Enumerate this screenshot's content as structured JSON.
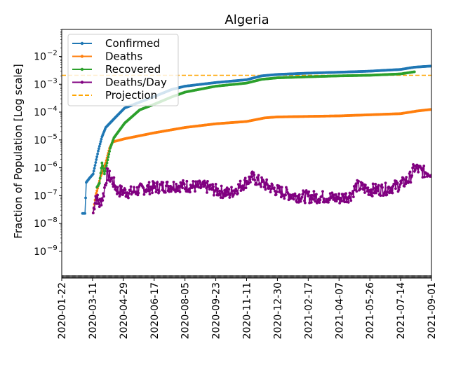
{
  "chart_data": {
    "type": "line",
    "title": "Algeria",
    "xlabel": "",
    "ylabel": "Fraction of Population [Log scale]",
    "yscale": "log",
    "ylim": [
      1.1e-10,
      0.093
    ],
    "xlim": [
      "2020-01-22",
      "2021-09-01"
    ],
    "x_ticks": [
      "2020-01-22",
      "2020-03-11",
      "2020-04-29",
      "2020-06-17",
      "2020-08-05",
      "2020-09-23",
      "2020-11-11",
      "2020-12-30",
      "2021-02-17",
      "2021-04-07",
      "2021-05-26",
      "2021-07-14",
      "2021-09-01"
    ],
    "y_ticks": [
      {
        "value": 0.01,
        "base": "10",
        "exp": "−2"
      },
      {
        "value": 0.001,
        "base": "10",
        "exp": "−3"
      },
      {
        "value": 0.0001,
        "base": "10",
        "exp": "−4"
      },
      {
        "value": 1e-05,
        "base": "10",
        "exp": "−5"
      },
      {
        "value": 1e-06,
        "base": "10",
        "exp": "−6"
      },
      {
        "value": 1e-07,
        "base": "10",
        "exp": "−7"
      },
      {
        "value": 1e-08,
        "base": "10",
        "exp": "−8"
      },
      {
        "value": 1e-09,
        "base": "10",
        "exp": "−9"
      }
    ],
    "legend_position": "top-left",
    "series": [
      {
        "name": "Confirmed",
        "color": "#1f77b4",
        "style": "line-dots",
        "points": [
          [
            "2020-02-24",
            2.3e-08
          ],
          [
            "2020-02-28",
            2.3e-08
          ],
          [
            "2020-03-01",
            3e-07
          ],
          [
            "2020-03-06",
            4.2e-07
          ],
          [
            "2020-03-12",
            6e-07
          ],
          [
            "2020-03-20",
            4e-06
          ],
          [
            "2020-03-26",
            1.3e-05
          ],
          [
            "2020-04-01",
            2.8e-05
          ],
          [
            "2020-04-15",
            6e-05
          ],
          [
            "2020-05-01",
            0.00014
          ],
          [
            "2020-06-17",
            0.00036
          ],
          [
            "2020-07-15",
            0.00065
          ],
          [
            "2020-08-05",
            0.00085
          ],
          [
            "2020-09-23",
            0.00115
          ],
          [
            "2020-11-11",
            0.00145
          ],
          [
            "2020-12-05",
            0.002
          ],
          [
            "2020-12-30",
            0.00225
          ],
          [
            "2021-02-17",
            0.0025
          ],
          [
            "2021-04-07",
            0.0027
          ],
          [
            "2021-05-26",
            0.00295
          ],
          [
            "2021-07-14",
            0.0034
          ],
          [
            "2021-08-05",
            0.0041
          ],
          [
            "2021-09-01",
            0.0045
          ]
        ]
      },
      {
        "name": "Deaths",
        "color": "#ff7f0e",
        "style": "line-dots",
        "points": [
          [
            "2020-03-12",
            2.4e-08
          ],
          [
            "2020-03-16",
            1e-07
          ],
          [
            "2020-03-24",
            5e-07
          ],
          [
            "2020-04-01",
            1.5e-06
          ],
          [
            "2020-04-07",
            5e-06
          ],
          [
            "2020-04-12",
            8.5e-06
          ],
          [
            "2020-05-01",
            1.1e-05
          ],
          [
            "2020-06-17",
            1.8e-05
          ],
          [
            "2020-08-05",
            2.8e-05
          ],
          [
            "2020-09-23",
            3.8e-05
          ],
          [
            "2020-11-11",
            4.6e-05
          ],
          [
            "2020-12-10",
            6.2e-05
          ],
          [
            "2020-12-30",
            6.7e-05
          ],
          [
            "2021-02-17",
            7e-05
          ],
          [
            "2021-04-07",
            7.3e-05
          ],
          [
            "2021-05-26",
            8e-05
          ],
          [
            "2021-07-14",
            8.8e-05
          ],
          [
            "2021-08-10",
            0.00011
          ],
          [
            "2021-09-01",
            0.000125
          ]
        ]
      },
      {
        "name": "Recovered",
        "color": "#2ca02c",
        "style": "line-dots",
        "points": [
          [
            "2020-03-18",
            2e-07
          ],
          [
            "2020-03-22",
            2.8e-07
          ],
          [
            "2020-03-26",
            1.5e-06
          ],
          [
            "2020-03-30",
            6e-07
          ],
          [
            "2020-04-03",
            1.5e-06
          ],
          [
            "2020-04-08",
            5e-06
          ],
          [
            "2020-04-14",
            1.2e-05
          ],
          [
            "2020-05-01",
            4e-05
          ],
          [
            "2020-05-25",
            0.00012
          ],
          [
            "2020-06-17",
            0.00019
          ],
          [
            "2020-07-15",
            0.00035
          ],
          [
            "2020-08-05",
            0.00052
          ],
          [
            "2020-09-23",
            0.00085
          ],
          [
            "2020-11-11",
            0.0011
          ],
          [
            "2020-12-05",
            0.0015
          ],
          [
            "2020-12-30",
            0.0017
          ],
          [
            "2021-02-17",
            0.00185
          ],
          [
            "2021-04-07",
            0.002
          ],
          [
            "2021-05-26",
            0.0021
          ],
          [
            "2021-07-14",
            0.00235
          ],
          [
            "2021-08-05",
            0.0028
          ]
        ]
      },
      {
        "name": "Deaths/Day",
        "color": "#800080",
        "style": "line-dots",
        "points": [
          [
            "2020-03-12",
            2.4e-08
          ],
          [
            "2020-03-16",
            1e-07
          ],
          [
            "2020-03-22",
            5e-08
          ],
          [
            "2020-03-28",
            1e-07
          ],
          [
            "2020-04-03",
            6e-07
          ],
          [
            "2020-04-10",
            4e-07
          ],
          [
            "2020-04-20",
            1.5e-07
          ],
          [
            "2020-05-10",
            1.3e-07
          ],
          [
            "2020-06-01",
            1.8e-07
          ],
          [
            "2020-06-20",
            2e-07
          ],
          [
            "2020-07-20",
            2.3e-07
          ],
          [
            "2020-08-10",
            2.2e-07
          ],
          [
            "2020-09-10",
            2e-07
          ],
          [
            "2020-09-25",
            1.5e-07
          ],
          [
            "2020-10-15",
            1.2e-07
          ],
          [
            "2020-11-01",
            2.2e-07
          ],
          [
            "2020-11-20",
            4.5e-07
          ],
          [
            "2020-12-10",
            2.5e-07
          ],
          [
            "2020-12-30",
            1.5e-07
          ],
          [
            "2021-01-25",
            1e-07
          ],
          [
            "2021-02-17",
            9e-08
          ],
          [
            "2021-03-15",
            9e-08
          ],
          [
            "2021-04-07",
            8e-08
          ],
          [
            "2021-04-25",
            1e-07
          ],
          [
            "2021-05-05",
            2.2e-07
          ],
          [
            "2021-05-26",
            1.6e-07
          ],
          [
            "2021-06-20",
            1.7e-07
          ],
          [
            "2021-07-14",
            2.5e-07
          ],
          [
            "2021-07-28",
            4e-07
          ],
          [
            "2021-08-05",
            1e-06
          ],
          [
            "2021-08-20",
            7e-07
          ],
          [
            "2021-09-01",
            7e-07
          ]
        ]
      }
    ],
    "projection": {
      "name": "Projection",
      "color": "#ffa500",
      "style": "dashed",
      "value": 0.0021
    }
  }
}
